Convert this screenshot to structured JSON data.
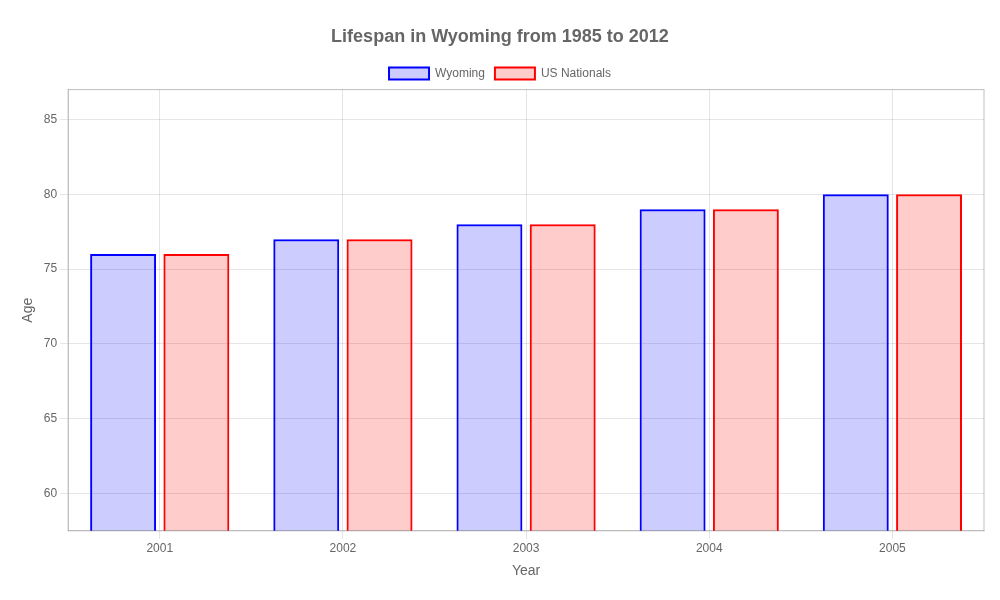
{
  "chart_data": {
    "type": "bar",
    "title": "Lifespan in Wyoming from 1985 to 2012",
    "x_label": "Year",
    "y_label": "Age",
    "categories": [
      "2001",
      "2002",
      "2003",
      "2004",
      "2005"
    ],
    "series": [
      {
        "name": "Wyoming",
        "color": "#0000ff",
        "values": [
          76,
          77,
          78,
          79,
          80
        ]
      },
      {
        "name": "US Nationals",
        "color": "#ff0000",
        "values": [
          76,
          77,
          78,
          79,
          80
        ]
      }
    ],
    "ylim": [
      57.5,
      87
    ],
    "yticks": [
      60,
      65,
      70,
      75,
      80,
      85
    ],
    "grid": true,
    "legend": "top"
  }
}
